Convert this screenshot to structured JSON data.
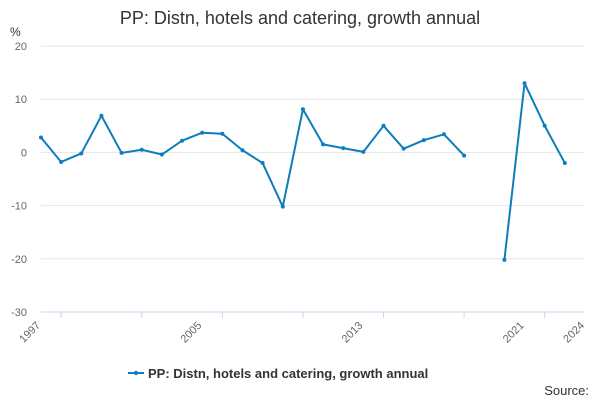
{
  "chart_data": {
    "type": "line",
    "title": "PP: Distn, hotels and catering, growth annual",
    "ylabel": "%",
    "xlabel": "",
    "ylim": [
      -30,
      20
    ],
    "yticks": [
      20,
      10,
      0,
      -10,
      -20,
      -30
    ],
    "xlim": [
      1997,
      2024
    ],
    "xticks": [
      1997,
      2005,
      2013,
      2021,
      2024
    ],
    "grid": "horizontal",
    "legend_position": "bottom",
    "series": [
      {
        "name": "PP: Distn, hotels and catering, growth annual",
        "color": "#0f7dbc",
        "points": [
          {
            "x": 1997,
            "y": 2.8
          },
          {
            "x": 1998,
            "y": -1.8
          },
          {
            "x": 1999,
            "y": -0.2
          },
          {
            "x": 2000,
            "y": 6.9
          },
          {
            "x": 2001,
            "y": -0.1
          },
          {
            "x": 2002,
            "y": 0.5
          },
          {
            "x": 2003,
            "y": -0.4
          },
          {
            "x": 2004,
            "y": 2.2
          },
          {
            "x": 2005,
            "y": 3.7
          },
          {
            "x": 2006,
            "y": 3.5
          },
          {
            "x": 2007,
            "y": 0.4
          },
          {
            "x": 2008,
            "y": -2.0
          },
          {
            "x": 2009,
            "y": -10.2
          },
          {
            "x": 2010,
            "y": 8.1
          },
          {
            "x": 2011,
            "y": 1.5
          },
          {
            "x": 2012,
            "y": 0.8
          },
          {
            "x": 2013,
            "y": 0.1
          },
          {
            "x": 2014,
            "y": 5.0
          },
          {
            "x": 2015,
            "y": 0.7
          },
          {
            "x": 2016,
            "y": 2.3
          },
          {
            "x": 2017,
            "y": 3.4
          },
          {
            "x": 2018,
            "y": -0.6
          },
          {
            "x": 2019,
            "y": null
          },
          {
            "x": 2020,
            "y": -20.2
          },
          {
            "x": 2021,
            "y": 13.0
          },
          {
            "x": 2022,
            "y": 5.0
          },
          {
            "x": 2023,
            "y": -2.0
          }
        ]
      }
    ]
  },
  "source_label": "Source:"
}
